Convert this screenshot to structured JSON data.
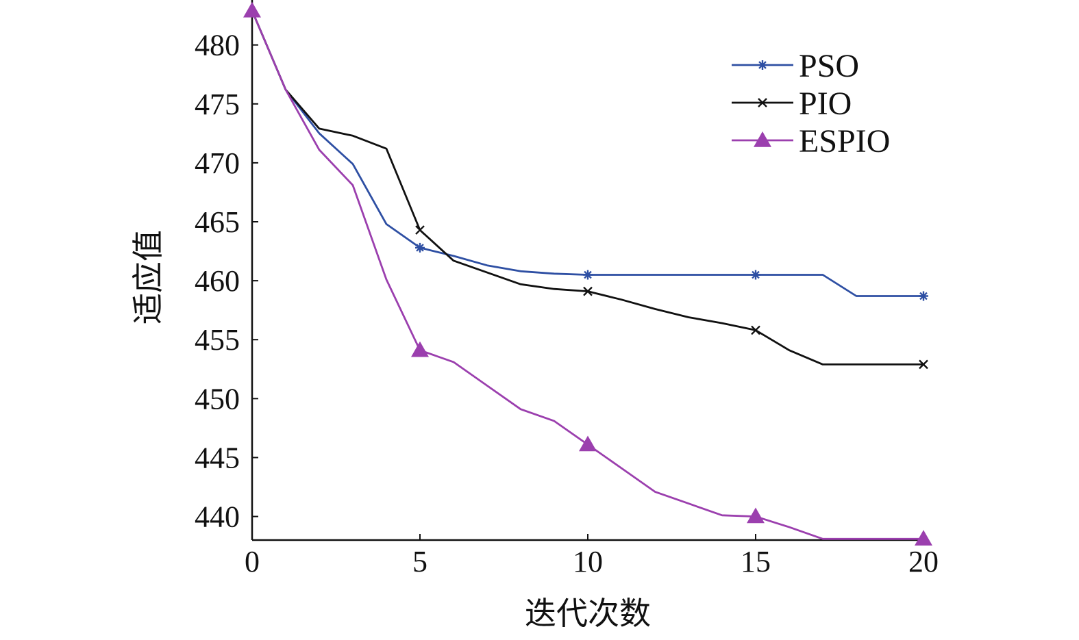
{
  "chart_data": {
    "type": "line",
    "xlabel": "迭代次数",
    "ylabel": "适应值",
    "xlim": [
      0,
      20
    ],
    "ylim": [
      438,
      483
    ],
    "xticks": [
      0,
      5,
      10,
      15,
      20
    ],
    "yticks": [
      440,
      445,
      450,
      455,
      460,
      465,
      470,
      475,
      480
    ],
    "legend_position": "top-right",
    "grid": false,
    "series": [
      {
        "name": "PSO",
        "color": "#2e4fa3",
        "marker": "asterisk",
        "x": [
          0,
          1,
          2,
          3,
          4,
          5,
          6,
          7,
          8,
          9,
          10,
          11,
          12,
          13,
          14,
          15,
          16,
          17,
          18,
          19,
          20
        ],
        "y": [
          482.9,
          476.2,
          472.5,
          469.9,
          464.8,
          462.8,
          462.1,
          461.3,
          460.8,
          460.6,
          460.5,
          460.5,
          460.5,
          460.5,
          460.5,
          460.5,
          460.5,
          460.5,
          458.7,
          458.7,
          458.7
        ],
        "marker_indices": [
          5,
          10,
          15,
          20
        ]
      },
      {
        "name": "PIO",
        "color": "#111111",
        "marker": "x",
        "x": [
          0,
          1,
          2,
          3,
          4,
          5,
          6,
          7,
          8,
          9,
          10,
          11,
          12,
          13,
          14,
          15,
          16,
          17,
          18,
          19,
          20
        ],
        "y": [
          482.9,
          476.2,
          472.9,
          472.3,
          471.2,
          464.3,
          461.7,
          460.7,
          459.7,
          459.3,
          459.1,
          458.4,
          457.6,
          456.9,
          456.4,
          455.8,
          454.1,
          452.9,
          452.9,
          452.9,
          452.9
        ],
        "marker_indices": [
          5,
          10,
          15,
          20
        ]
      },
      {
        "name": "ESPIO",
        "color": "#9b3fae",
        "marker": "triangle",
        "x": [
          0,
          1,
          2,
          3,
          4,
          5,
          6,
          7,
          8,
          9,
          10,
          11,
          12,
          13,
          14,
          15,
          16,
          17,
          18,
          19,
          20
        ],
        "y": [
          482.9,
          476.2,
          471.1,
          468.1,
          460.1,
          454.1,
          453.1,
          451.1,
          449.1,
          448.1,
          446.1,
          444.1,
          442.1,
          441.1,
          440.1,
          440.0,
          439.1,
          438.1,
          438.1,
          438.1,
          438.1
        ],
        "marker_indices": [
          0,
          5,
          10,
          15,
          20
        ]
      }
    ]
  }
}
